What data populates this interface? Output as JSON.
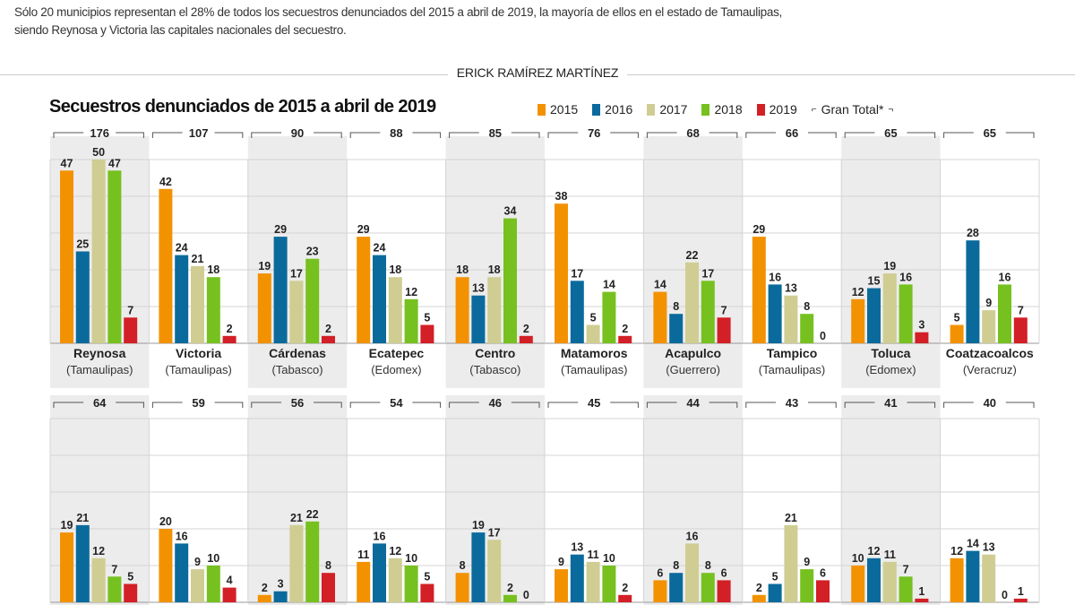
{
  "intro": {
    "line1": "Sólo 20 municipios representan el 28% de todos los secuestros denunciados del 2015 a abril de 2019, la mayoría de ellos en el estado de Tamaulipas,",
    "line2": "siendo Reynosa y Victoria las capitales nacionales del secuestro."
  },
  "byline": "ERICK RAMÍREZ MARTÍNEZ",
  "chart_data": {
    "type": "bar",
    "title": "Secuestros denunciados de 2015 a abril de 2019",
    "legend": [
      "2015",
      "2016",
      "2017",
      "2018",
      "2019"
    ],
    "total_legend": "Gran Total*",
    "colors": [
      "#f39200",
      "#0b6a9c",
      "#cfcd92",
      "#76c11f",
      "#d31f26"
    ],
    "ylim": [
      0,
      50
    ],
    "grid": true,
    "rows": [
      [
        {
          "name": "Reynosa",
          "state": "(Tamaulipas)",
          "total": 176,
          "values": [
            47,
            25,
            50,
            47,
            7
          ]
        },
        {
          "name": "Victoria",
          "state": "(Tamaulipas)",
          "total": 107,
          "values": [
            42,
            24,
            21,
            18,
            2
          ]
        },
        {
          "name": "Cárdenas",
          "state": "(Tabasco)",
          "total": 90,
          "values": [
            19,
            29,
            17,
            23,
            2
          ]
        },
        {
          "name": "Ecatepec",
          "state": "(Edomex)",
          "total": 88,
          "values": [
            29,
            24,
            18,
            12,
            5
          ]
        },
        {
          "name": "Centro",
          "state": "(Tabasco)",
          "total": 85,
          "values": [
            18,
            13,
            18,
            34,
            2
          ]
        },
        {
          "name": "Matamoros",
          "state": "(Tamaulipas)",
          "total": 76,
          "values": [
            38,
            17,
            5,
            14,
            2
          ]
        },
        {
          "name": "Acapulco",
          "state": "(Guerrero)",
          "total": 68,
          "values": [
            14,
            8,
            22,
            17,
            7
          ]
        },
        {
          "name": "Tampico",
          "state": "(Tamaulipas)",
          "total": 66,
          "values": [
            29,
            16,
            13,
            8,
            0
          ]
        },
        {
          "name": "Toluca",
          "state": "(Edomex)",
          "total": 65,
          "values": [
            12,
            15,
            19,
            16,
            3
          ]
        },
        {
          "name": "Coatzacoalcos",
          "state": "(Veracruz)",
          "total": 65,
          "values": [
            5,
            28,
            9,
            16,
            7
          ]
        }
      ],
      [
        {
          "total": 64,
          "values": [
            19,
            21,
            12,
            7,
            5
          ]
        },
        {
          "total": 59,
          "values": [
            20,
            16,
            9,
            10,
            4
          ]
        },
        {
          "total": 56,
          "values": [
            2,
            3,
            21,
            22,
            8
          ]
        },
        {
          "total": 54,
          "values": [
            11,
            16,
            12,
            10,
            5
          ]
        },
        {
          "total": 46,
          "values": [
            8,
            19,
            17,
            2,
            0
          ]
        },
        {
          "total": 45,
          "values": [
            9,
            13,
            11,
            10,
            2
          ]
        },
        {
          "total": 44,
          "values": [
            6,
            8,
            16,
            8,
            6
          ]
        },
        {
          "total": 43,
          "values": [
            2,
            5,
            21,
            9,
            6
          ]
        },
        {
          "total": 41,
          "values": [
            10,
            12,
            11,
            7,
            1
          ]
        },
        {
          "total": 40,
          "values": [
            12,
            14,
            13,
            0,
            1
          ]
        }
      ]
    ]
  }
}
